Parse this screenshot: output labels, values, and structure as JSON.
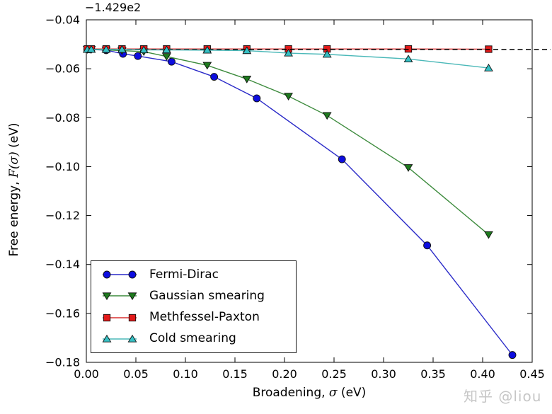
{
  "figure": {
    "background": "#ffffff"
  },
  "watermark": {
    "text": "知乎 @liou",
    "color": "#c6c6c6"
  },
  "axes_labels": {
    "offset_text": "−1.429e2",
    "xlabel_prefix": "Broadening, ",
    "xlabel_math": "σ",
    "xlabel_suffix": " (eV)",
    "ylabel_prefix": "Free energy, ",
    "ylabel_math": "F(σ)",
    "ylabel_suffix": " (eV)"
  },
  "legend": {
    "border_color": "#1a1a1a",
    "background": "#ffffff"
  },
  "chart_data": {
    "type": "line",
    "title": "",
    "xlabel": "Broadening, σ (eV)",
    "ylabel": "Free energy, F(σ) (eV)",
    "y_offset_text": "−1.429e2",
    "xlim": [
      0,
      0.45
    ],
    "ylim": [
      -0.18,
      -0.04
    ],
    "x_ticks": [
      0.0,
      0.05,
      0.1,
      0.15,
      0.2,
      0.25,
      0.3,
      0.35,
      0.4,
      0.45
    ],
    "x_tick_labels": [
      "0.00",
      "0.05",
      "0.10",
      "0.15",
      "0.20",
      "0.25",
      "0.30",
      "0.35",
      "0.40",
      "0.45"
    ],
    "y_ticks": [
      -0.04,
      -0.06,
      -0.08,
      -0.1,
      -0.12,
      -0.14,
      -0.16,
      -0.18
    ],
    "y_tick_labels": [
      "−0.04",
      "−0.06",
      "−0.08",
      "−0.10",
      "−0.12",
      "−0.14",
      "−0.16",
      "−0.18"
    ],
    "grid": false,
    "legend_position": "lower-left",
    "reference_line": {
      "y": -0.0521,
      "style": "dashed",
      "color": "#000000"
    },
    "series": [
      {
        "name": "Fermi-Dirac",
        "marker": "circle",
        "marker_color": "#0d0de0",
        "line_color": "#2a2ac8",
        "x": [
          0.001,
          0.004,
          0.02,
          0.037,
          0.052,
          0.086,
          0.129,
          0.172,
          0.258,
          0.344,
          0.43
        ],
        "y": [
          -0.0521,
          -0.0521,
          -0.0524,
          -0.0539,
          -0.0548,
          -0.0571,
          -0.0633,
          -0.0721,
          -0.097,
          -0.1322,
          -0.177
        ]
      },
      {
        "name": "Gaussian smearing",
        "marker": "triangle-down",
        "marker_color": "#1e7a1e",
        "line_color": "#3d8b3d",
        "x": [
          0.001,
          0.005,
          0.02,
          0.036,
          0.058,
          0.081,
          0.122,
          0.162,
          0.204,
          0.243,
          0.325,
          0.406
        ],
        "y": [
          -0.0521,
          -0.0521,
          -0.0523,
          -0.0526,
          -0.053,
          -0.055,
          -0.0586,
          -0.0642,
          -0.0712,
          -0.0791,
          -0.1004,
          -0.1278
        ]
      },
      {
        "name": "Methfessel-Paxton",
        "marker": "square",
        "marker_color": "#e31a1a",
        "line_color": "#d83030",
        "x": [
          0.001,
          0.005,
          0.02,
          0.036,
          0.058,
          0.081,
          0.122,
          0.162,
          0.204,
          0.243,
          0.325,
          0.406
        ],
        "y": [
          -0.0519,
          -0.0519,
          -0.0519,
          -0.0519,
          -0.0519,
          -0.0519,
          -0.0519,
          -0.0519,
          -0.0519,
          -0.0519,
          -0.0519,
          -0.052
        ]
      },
      {
        "name": "Cold smearing",
        "marker": "triangle-up",
        "marker_color": "#35c0c4",
        "line_color": "#4ab8b8",
        "x": [
          0.001,
          0.005,
          0.02,
          0.036,
          0.058,
          0.081,
          0.122,
          0.162,
          0.204,
          0.243,
          0.325,
          0.406
        ],
        "y": [
          -0.0521,
          -0.0521,
          -0.0521,
          -0.0521,
          -0.0523,
          -0.0523,
          -0.0524,
          -0.0526,
          -0.0536,
          -0.0541,
          -0.056,
          -0.0597
        ]
      }
    ]
  }
}
